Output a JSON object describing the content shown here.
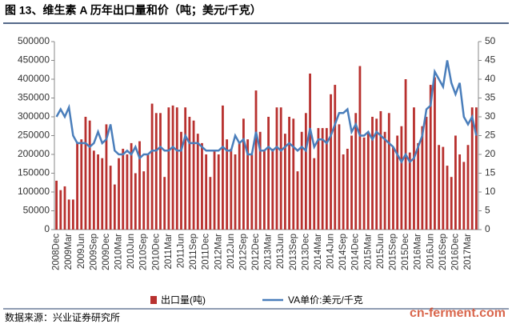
{
  "chart_data": {
    "type": "bar-line",
    "title": "图 13、维生素 A 历年出口量和价（吨；美元/千克）",
    "source": "数据来源：兴业证券研究所",
    "watermark": "cn-ferment.com",
    "categories": [
      "2008Dec",
      null,
      null,
      "2009Mar",
      null,
      null,
      "2009Jun",
      null,
      null,
      "2009Sep",
      null,
      null,
      "2009Dec",
      null,
      null,
      "2010Mar",
      null,
      null,
      "2010Jun",
      null,
      null,
      "2010Sep",
      null,
      null,
      "2010Dec",
      null,
      null,
      "2011Mar",
      null,
      null,
      "2011Jun",
      null,
      null,
      "2011Sep",
      null,
      null,
      "2011Dec",
      null,
      null,
      "2012Mar",
      null,
      null,
      "2012Jun",
      null,
      null,
      "2012Sep",
      null,
      null,
      "2012Dec",
      null,
      null,
      "2013Mar",
      null,
      null,
      "2013Jun",
      null,
      null,
      "2013Sep",
      null,
      null,
      "2013Dec",
      null,
      null,
      "2014Mar",
      null,
      null,
      "2014Jun",
      null,
      null,
      "2014Sep",
      null,
      null,
      "2014Dec",
      null,
      null,
      "2015Mar",
      null,
      null,
      "2015Jun",
      null,
      null,
      "2015Sep",
      null,
      null,
      "2015Dec",
      null,
      null,
      "2016Mar",
      null,
      null,
      "2016Jun",
      null,
      null,
      "2016Sep",
      null,
      null,
      "2016Dec",
      null,
      null,
      "2017Mar",
      null,
      null
    ],
    "series": [
      {
        "name": "出口量(吨)",
        "type": "bar",
        "color": "#b8312f",
        "values": [
          130000,
          105000,
          115000,
          80000,
          80000,
          230000,
          240000,
          300000,
          290000,
          210000,
          200000,
          190000,
          280000,
          170000,
          120000,
          190000,
          215000,
          200000,
          230000,
          150000,
          235000,
          155000,
          200000,
          335000,
          310000,
          310000,
          140000,
          325000,
          330000,
          325000,
          260000,
          325000,
          300000,
          290000,
          255000,
          230000,
          200000,
          140000,
          210000,
          200000,
          330000,
          240000,
          215000,
          200000,
          230000,
          295000,
          240000,
          200000,
          370000,
          260000,
          210000,
          300000,
          215000,
          325000,
          325000,
          255000,
          300000,
          295000,
          155000,
          260000,
          310000,
          415000,
          190000,
          270000,
          270000,
          270000,
          360000,
          385000,
          280000,
          200000,
          215000,
          250000,
          310000,
          435000,
          245000,
          260000,
          300000,
          295000,
          315000,
          260000,
          310000,
          220000,
          250000,
          275000,
          400000,
          205000,
          325000,
          230000,
          275000,
          300000,
          385000,
          405000,
          225000,
          220000,
          170000,
          140000,
          250000,
          200000,
          180000,
          225000,
          325000,
          325000
        ]
      },
      {
        "name": "VA单价:美元/千克",
        "type": "line",
        "axis": "y2",
        "color": "#4a7ebb",
        "values": [
          30,
          32,
          30,
          32.5,
          25,
          23,
          23,
          23,
          22,
          23,
          26,
          23,
          24,
          28,
          21,
          20,
          20,
          21,
          20,
          22,
          19,
          20,
          20,
          21,
          21,
          22,
          21,
          21,
          22,
          21,
          21,
          25,
          23,
          23,
          23,
          22,
          21,
          21,
          21,
          21,
          22,
          21,
          21,
          25,
          23,
          24,
          20,
          20,
          26,
          21,
          21,
          22,
          21,
          22,
          21,
          22,
          23,
          22,
          21,
          22,
          21,
          27,
          22,
          24,
          24,
          23,
          25,
          28,
          31,
          31,
          32,
          26,
          28,
          25,
          25,
          26,
          24,
          26,
          25,
          24,
          23,
          22,
          20,
          18,
          20,
          18,
          19,
          22,
          25,
          32,
          33,
          42,
          40,
          38,
          45,
          39,
          36,
          39,
          30,
          28,
          30,
          25
        ]
      }
    ],
    "ylim": [
      0,
      500000
    ],
    "yticks": [
      0,
      50000,
      100000,
      150000,
      200000,
      250000,
      300000,
      350000,
      400000,
      450000,
      500000
    ],
    "y2lim": [
      0,
      50
    ],
    "y2ticks": [
      0,
      5,
      10,
      15,
      20,
      25,
      30,
      35,
      40,
      45,
      50
    ]
  }
}
